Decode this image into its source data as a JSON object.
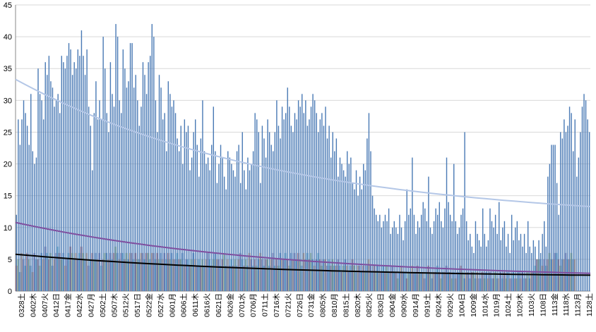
{
  "chart_data": {
    "type": "bar",
    "title": "",
    "xlabel": "",
    "ylabel": "",
    "ylim": [
      0,
      45
    ],
    "y_ticks": [
      0,
      5,
      10,
      15,
      20,
      25,
      30,
      35,
      40,
      45
    ],
    "grid": "horizontal",
    "legend": "none",
    "x_tick_labels": [
      "0328土",
      "0402木",
      "0407火",
      "0412日",
      "0417金",
      "0422水",
      "0427月",
      "0502土",
      "0507木",
      "0512火",
      "0517日",
      "0522金",
      "0527水",
      "0601月",
      "0606土",
      "0611木",
      "0616火",
      "0621日",
      "0626金",
      "0701水",
      "0706月",
      "0711土",
      "0716木",
      "0721火",
      "0726日",
      "0731金",
      "0805水",
      "0810月",
      "0815土",
      "0820木",
      "0825火",
      "0830日",
      "0904金",
      "0909水",
      "0914月",
      "0919土",
      "0924木",
      "0929火",
      "1004日",
      "1009金",
      "1014水",
      "1019月",
      "1024土",
      "1029木",
      "1103火",
      "1108日",
      "1113金",
      "1118水",
      "1123月",
      "1128土"
    ],
    "colors": {
      "total_bars": "#4a7ab5",
      "sub_series": [
        "#c0504d",
        "#9bbb59",
        "#4f81bd",
        "#f79646",
        "#8064a2",
        "#4bacc6"
      ],
      "trend_total": "#b4c7e7",
      "trend_purple": "#7f4f9f",
      "trend_black": "#000000"
    },
    "series": [
      {
        "role": "total",
        "values": [
          12,
          27,
          23,
          27,
          30,
          28,
          26,
          23,
          31,
          22,
          20,
          21,
          35,
          31,
          30,
          27,
          36,
          34,
          37,
          33,
          32,
          29,
          30,
          31,
          28,
          37,
          36,
          35,
          37,
          39,
          38,
          34,
          36,
          35,
          38,
          37,
          41,
          37,
          34,
          38,
          29,
          26,
          19,
          28,
          33,
          27,
          30,
          27,
          40,
          35,
          28,
          25,
          36,
          31,
          29,
          42,
          40,
          30,
          28,
          38,
          35,
          32,
          33,
          39,
          39,
          32,
          34,
          30,
          26,
          29,
          36,
          34,
          31,
          36,
          37,
          42,
          40,
          30,
          25,
          34,
          32,
          27,
          28,
          22,
          33,
          31,
          29,
          30,
          28,
          24,
          22,
          26,
          20,
          27,
          25,
          26,
          19,
          21,
          25,
          27,
          23,
          18,
          24,
          30,
          22,
          20,
          21,
          19,
          23,
          29,
          22,
          17,
          20,
          23,
          21,
          18,
          16,
          22,
          21,
          20,
          19,
          18,
          22,
          23,
          17,
          25,
          19,
          16,
          21,
          19,
          20,
          22,
          28,
          27,
          25,
          17,
          26,
          24,
          21,
          27,
          25,
          23,
          22,
          25,
          30,
          26,
          24,
          29,
          27,
          28,
          32,
          29,
          26,
          25,
          28,
          27,
          30,
          29,
          31,
          28,
          30,
          26,
          27,
          29,
          31,
          30,
          28,
          25,
          27,
          28,
          26,
          29,
          24,
          26,
          21,
          25,
          22,
          24,
          18,
          21,
          20,
          19,
          18,
          22,
          20,
          21,
          17,
          16,
          19,
          15,
          18,
          16,
          20,
          19,
          24,
          28,
          22,
          15,
          13,
          12,
          11,
          12,
          10,
          11,
          12,
          11,
          13,
          9,
          10,
          11,
          10,
          9,
          12,
          10,
          8,
          11,
          16,
          12,
          13,
          21,
          12,
          9,
          11,
          10,
          12,
          14,
          13,
          11,
          18,
          10,
          9,
          11,
          13,
          12,
          14,
          11,
          10,
          13,
          21,
          14,
          12,
          11,
          20,
          11,
          9,
          10,
          12,
          13,
          25,
          11,
          8,
          9,
          7,
          6,
          11,
          9,
          8,
          7,
          13,
          9,
          7,
          8,
          13,
          11,
          10,
          12,
          9,
          14,
          8,
          10,
          11,
          7,
          9,
          6,
          12,
          8,
          10,
          11,
          8,
          9,
          7,
          9,
          6,
          11,
          7,
          6,
          8,
          7,
          5,
          8,
          6,
          9,
          11,
          7,
          18,
          20,
          23,
          23,
          23,
          17,
          12,
          25,
          24,
          27,
          25,
          26,
          29,
          28,
          22,
          27,
          18,
          21,
          25,
          29,
          31,
          30,
          27,
          25
        ]
      },
      {
        "role": "sub",
        "values": [
          4,
          5,
          3,
          6,
          5,
          4,
          6,
          5,
          4,
          3,
          6,
          5,
          5,
          4,
          6,
          5,
          7,
          6,
          5,
          6,
          4,
          5,
          6,
          7,
          6,
          5,
          6,
          4,
          5,
          6,
          7,
          6,
          5,
          6,
          5,
          6,
          7,
          6,
          5,
          6,
          4,
          5,
          6,
          5,
          6,
          5,
          6,
          4,
          5,
          6,
          6,
          5,
          6,
          5,
          6,
          7,
          6,
          5,
          6,
          6,
          5,
          6,
          5,
          6,
          6,
          5,
          6,
          5,
          5,
          6,
          6,
          5,
          6,
          6,
          5,
          6,
          6,
          5,
          6,
          5,
          6,
          5,
          6,
          5,
          6,
          5,
          6,
          5,
          5,
          6,
          5,
          5,
          6,
          4,
          5,
          5,
          4,
          5,
          6,
          5,
          4,
          5,
          4,
          5,
          4,
          5,
          6,
          5,
          4,
          5,
          6,
          5,
          5,
          4,
          5,
          6,
          4,
          5,
          4,
          5,
          4,
          5,
          4,
          5,
          6,
          5,
          4,
          5,
          4,
          6,
          5,
          4,
          5,
          4,
          5,
          6,
          5,
          4,
          5,
          5,
          4,
          5,
          6,
          4,
          5,
          4,
          6,
          5,
          5,
          6,
          5,
          4,
          6,
          5,
          6,
          5,
          6,
          5,
          4,
          6,
          5,
          6,
          5,
          6,
          5,
          4,
          5,
          6,
          5,
          4,
          5,
          5,
          4,
          5,
          4,
          5,
          4,
          4,
          5,
          4,
          3,
          4,
          5,
          4,
          3,
          4,
          5,
          4,
          3,
          4,
          4,
          3,
          4,
          3,
          4,
          5,
          4,
          3,
          4,
          3,
          4,
          3,
          3,
          4,
          3,
          4,
          3,
          3,
          4,
          3,
          3,
          2,
          3,
          4,
          3,
          3,
          2,
          3,
          3,
          4,
          3,
          3,
          4,
          3,
          3,
          3,
          2,
          3,
          4,
          3,
          2,
          3,
          3,
          4,
          3,
          2,
          3,
          3,
          4,
          3,
          3,
          2,
          3,
          2,
          3,
          3,
          4,
          3,
          2,
          3,
          3,
          2,
          3,
          3,
          2,
          3,
          2,
          2,
          3,
          2,
          3,
          2,
          3,
          2,
          2,
          3,
          2,
          2,
          3,
          2,
          3,
          2,
          3,
          2,
          2,
          3,
          2,
          2,
          3,
          2,
          3,
          2,
          2,
          3,
          2,
          3,
          3,
          4,
          5,
          5,
          5,
          4,
          5,
          4,
          5,
          6,
          5,
          5,
          6,
          6,
          5,
          4,
          5,
          5,
          6,
          5,
          5,
          6,
          5,
          5
        ]
      }
    ],
    "trendlines": [
      {
        "role": "total_trend",
        "start": 33.3,
        "end": 13.3
      },
      {
        "role": "purple_trend",
        "start": 10.8,
        "end": 2.8
      },
      {
        "role": "black_trend",
        "start": 5.8,
        "end": 2.5
      }
    ]
  }
}
